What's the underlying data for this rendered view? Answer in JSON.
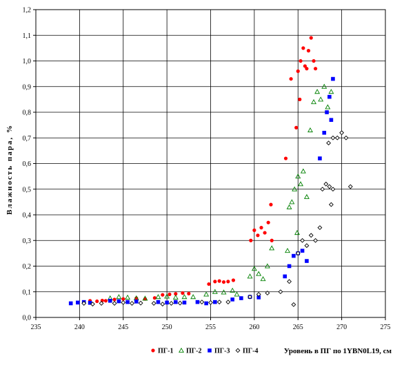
{
  "chart_data": {
    "type": "scatter",
    "title": "",
    "xlabel": "Уровень в ПГ по 1YBN0L19, см",
    "ylabel": "Влажность пара, %",
    "xlim": [
      235,
      275
    ],
    "ylim": [
      0,
      1.2
    ],
    "xticks": [
      "235",
      "240",
      "245",
      "250",
      "255",
      "260",
      "265",
      "270",
      "275"
    ],
    "yticks": [
      "0,0",
      "0,1",
      "0,2",
      "0,3",
      "0,4",
      "0,5",
      "0,6",
      "0,7",
      "0,8",
      "0,9",
      "1,0",
      "1,1",
      "1,2"
    ],
    "grid": true,
    "legend_position": "bottom",
    "series": [
      {
        "name": "ПГ-1",
        "color": "#ff0000",
        "marker": "circle",
        "points": [
          [
            240.5,
            0.06
          ],
          [
            241.2,
            0.065
          ],
          [
            242.0,
            0.063
          ],
          [
            242.6,
            0.066
          ],
          [
            243.0,
            0.065
          ],
          [
            244.0,
            0.07
          ],
          [
            245.0,
            0.072
          ],
          [
            246.5,
            0.075
          ],
          [
            247.5,
            0.072
          ],
          [
            248.6,
            0.076
          ],
          [
            249.5,
            0.088
          ],
          [
            250.3,
            0.09
          ],
          [
            251.0,
            0.092
          ],
          [
            251.8,
            0.095
          ],
          [
            252.5,
            0.093
          ],
          [
            254.8,
            0.13
          ],
          [
            255.5,
            0.14
          ],
          [
            256.0,
            0.142
          ],
          [
            256.5,
            0.138
          ],
          [
            257.0,
            0.14
          ],
          [
            257.6,
            0.145
          ],
          [
            259.6,
            0.3
          ],
          [
            260.0,
            0.34
          ],
          [
            260.4,
            0.32
          ],
          [
            260.8,
            0.35
          ],
          [
            261.2,
            0.33
          ],
          [
            261.6,
            0.37
          ],
          [
            262.0,
            0.3
          ],
          [
            261.9,
            0.44
          ],
          [
            263.6,
            0.62
          ],
          [
            264.2,
            0.93
          ],
          [
            264.8,
            0.74
          ],
          [
            265.0,
            0.96
          ],
          [
            265.3,
            1.0
          ],
          [
            265.6,
            1.05
          ],
          [
            265.8,
            0.98
          ],
          [
            266.0,
            0.97
          ],
          [
            266.2,
            1.04
          ],
          [
            266.5,
            1.09
          ],
          [
            266.8,
            1.0
          ],
          [
            267.0,
            0.97
          ],
          [
            265.2,
            0.85
          ]
        ]
      },
      {
        "name": "ПГ-2",
        "color": "#008000",
        "marker": "triangle",
        "points": [
          [
            243.5,
            0.075
          ],
          [
            244.5,
            0.08
          ],
          [
            245.5,
            0.078
          ],
          [
            246.5,
            0.075
          ],
          [
            247.5,
            0.074
          ],
          [
            249.0,
            0.08
          ],
          [
            250.0,
            0.082
          ],
          [
            251.0,
            0.078
          ],
          [
            252.0,
            0.08
          ],
          [
            253.0,
            0.08
          ],
          [
            254.5,
            0.09
          ],
          [
            255.5,
            0.1
          ],
          [
            256.5,
            0.098
          ],
          [
            257.5,
            0.105
          ],
          [
            258.0,
            0.09
          ],
          [
            259.5,
            0.16
          ],
          [
            260.0,
            0.19
          ],
          [
            260.5,
            0.17
          ],
          [
            261.0,
            0.15
          ],
          [
            261.5,
            0.2
          ],
          [
            262.0,
            0.27
          ],
          [
            264.0,
            0.43
          ],
          [
            264.3,
            0.45
          ],
          [
            264.6,
            0.5
          ],
          [
            265.0,
            0.55
          ],
          [
            265.3,
            0.52
          ],
          [
            265.6,
            0.57
          ],
          [
            266.0,
            0.47
          ],
          [
            266.4,
            0.73
          ],
          [
            266.8,
            0.84
          ],
          [
            267.2,
            0.88
          ],
          [
            267.6,
            0.85
          ],
          [
            268.0,
            0.9
          ],
          [
            268.4,
            0.82
          ],
          [
            268.8,
            0.88
          ],
          [
            264.9,
            0.33
          ],
          [
            263.8,
            0.26
          ]
        ]
      },
      {
        "name": "ПГ-3",
        "color": "#0000ff",
        "marker": "square",
        "points": [
          [
            239.0,
            0.055
          ],
          [
            239.8,
            0.058
          ],
          [
            240.5,
            0.06
          ],
          [
            241.2,
            0.057
          ],
          [
            243.5,
            0.065
          ],
          [
            244.5,
            0.063
          ],
          [
            245.5,
            0.06
          ],
          [
            246.5,
            0.062
          ],
          [
            249.0,
            0.06
          ],
          [
            250.0,
            0.058
          ],
          [
            251.0,
            0.06
          ],
          [
            252.0,
            0.058
          ],
          [
            253.5,
            0.06
          ],
          [
            254.5,
            0.055
          ],
          [
            255.5,
            0.06
          ],
          [
            257.5,
            0.07
          ],
          [
            258.5,
            0.075
          ],
          [
            259.5,
            0.08
          ],
          [
            260.5,
            0.078
          ],
          [
            263.5,
            0.16
          ],
          [
            264.0,
            0.2
          ],
          [
            264.5,
            0.24
          ],
          [
            265.0,
            0.25
          ],
          [
            265.5,
            0.26
          ],
          [
            266.0,
            0.22
          ],
          [
            267.5,
            0.62
          ],
          [
            268.0,
            0.72
          ],
          [
            268.3,
            0.8
          ],
          [
            268.6,
            0.86
          ],
          [
            269.0,
            0.93
          ],
          [
            268.8,
            0.77
          ]
        ]
      },
      {
        "name": "ПГ-4",
        "color": "#000000",
        "marker": "diamond",
        "points": [
          [
            240.5,
            0.055
          ],
          [
            241.5,
            0.052
          ],
          [
            242.5,
            0.055
          ],
          [
            244.0,
            0.055
          ],
          [
            245.0,
            0.058
          ],
          [
            246.0,
            0.055
          ],
          [
            247.0,
            0.056
          ],
          [
            248.5,
            0.055
          ],
          [
            249.5,
            0.052
          ],
          [
            250.5,
            0.055
          ],
          [
            251.5,
            0.056
          ],
          [
            254.0,
            0.06
          ],
          [
            255.0,
            0.058
          ],
          [
            256.0,
            0.06
          ],
          [
            257.0,
            0.06
          ],
          [
            259.5,
            0.08
          ],
          [
            260.5,
            0.09
          ],
          [
            261.5,
            0.095
          ],
          [
            263.0,
            0.1
          ],
          [
            264.0,
            0.14
          ],
          [
            265.0,
            0.25
          ],
          [
            265.5,
            0.3
          ],
          [
            266.0,
            0.28
          ],
          [
            266.5,
            0.32
          ],
          [
            267.0,
            0.3
          ],
          [
            267.5,
            0.35
          ],
          [
            267.8,
            0.5
          ],
          [
            268.2,
            0.52
          ],
          [
            268.6,
            0.51
          ],
          [
            269.0,
            0.5
          ],
          [
            268.8,
            0.44
          ],
          [
            268.5,
            0.68
          ],
          [
            269.0,
            0.7
          ],
          [
            269.5,
            0.7
          ],
          [
            270.0,
            0.72
          ],
          [
            270.5,
            0.7
          ],
          [
            271.0,
            0.51
          ],
          [
            264.5,
            0.05
          ]
        ]
      }
    ]
  }
}
